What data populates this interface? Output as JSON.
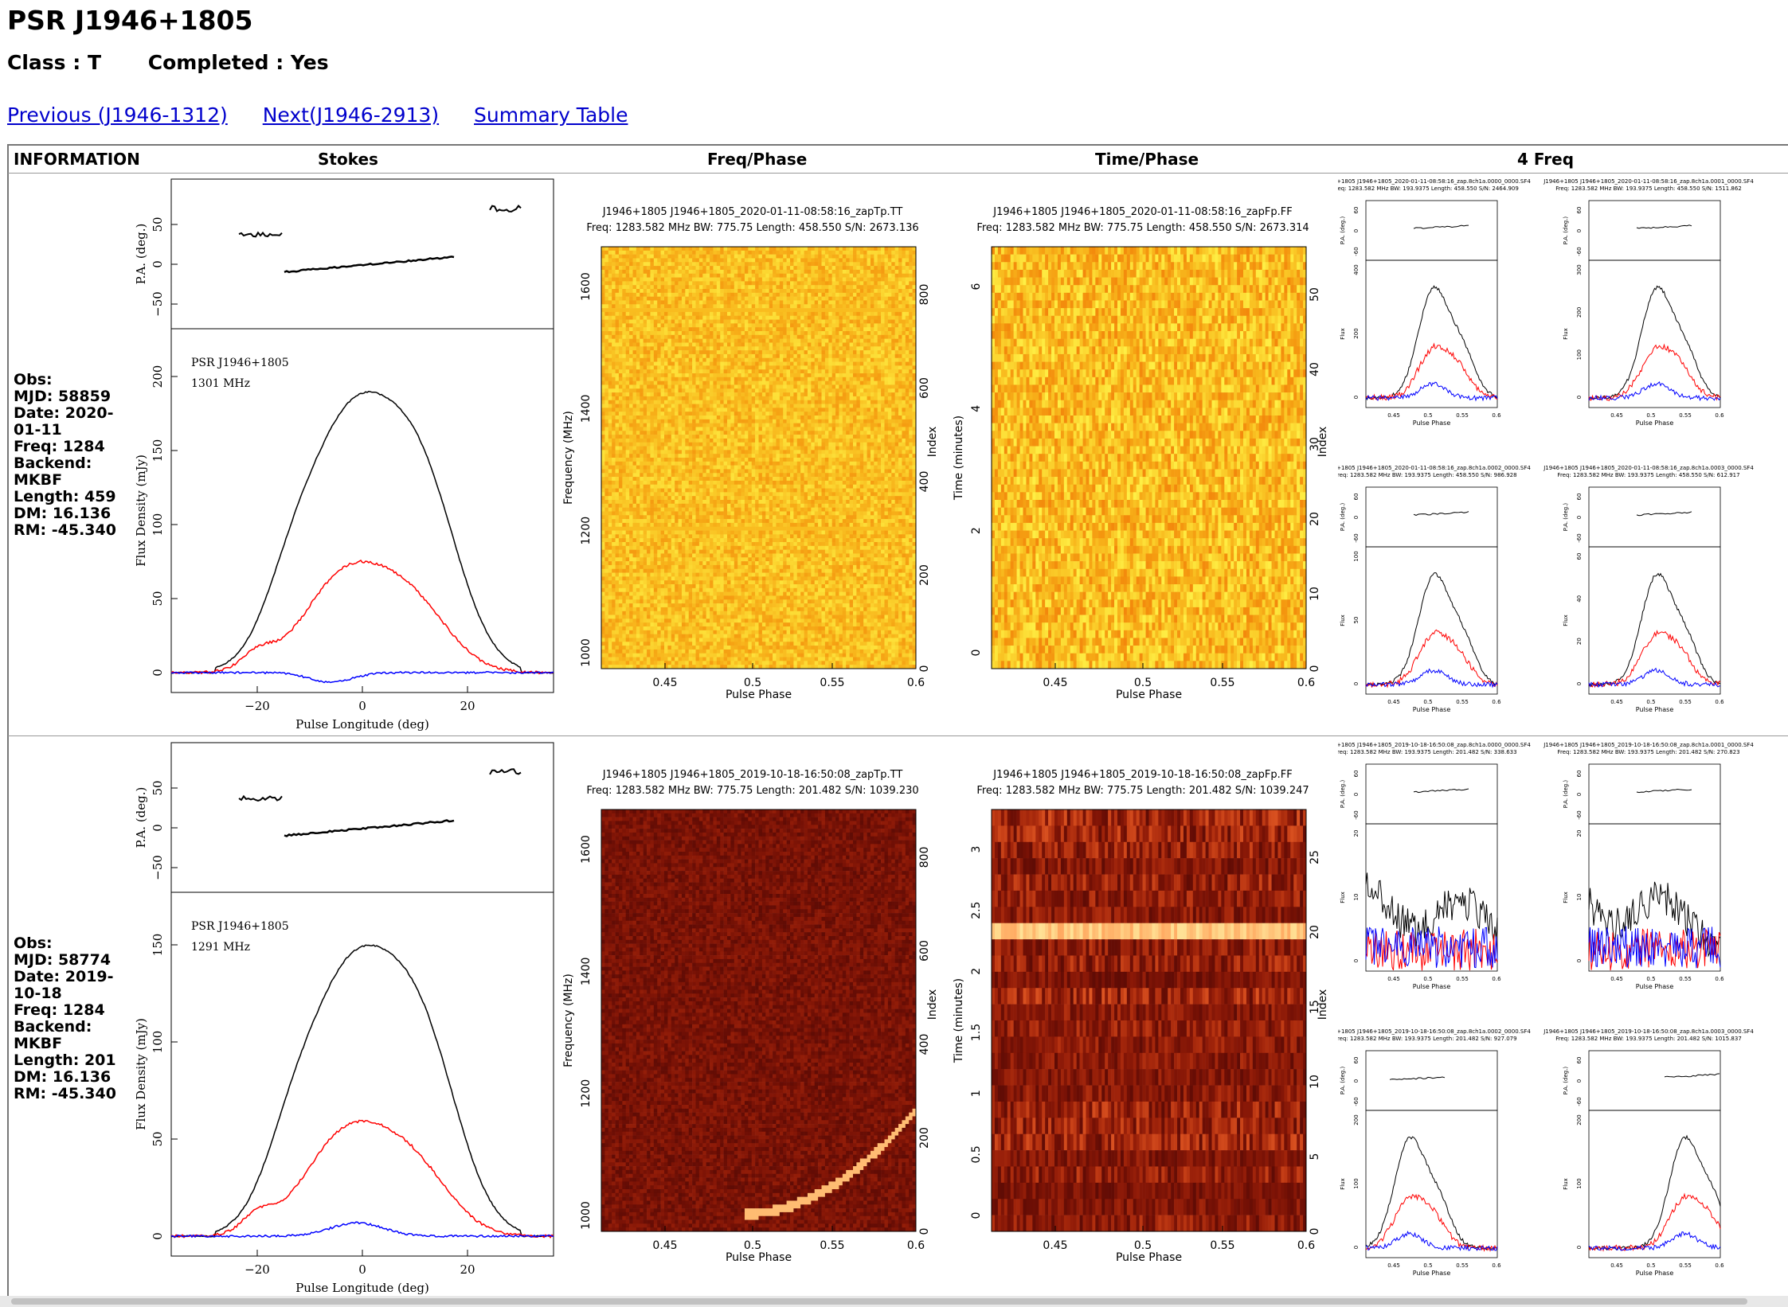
{
  "title": "PSR J1946+1805",
  "class_label": "Class : T",
  "completed_label": "Completed : Yes",
  "nav": {
    "previous": "Previous (J1946-1312)",
    "next": "Next(J1946-2913)",
    "summary": "Summary Table"
  },
  "headers": {
    "info": "INFORMATION",
    "stokes": "Stokes",
    "freq_phase": "Freq/Phase",
    "time_phase": "Time/Phase",
    "four_freq": "4 Freq"
  },
  "rows": [
    {
      "info": {
        "obs": "Obs:",
        "mjd": "MJD: 58859",
        "date": "Date: 2020-01-11",
        "freq": "Freq: 1284",
        "backend": "Backend: MKBF",
        "length": "Length: 459",
        "dm": "DM: 16.136",
        "rm": "RM: -45.340"
      },
      "stokes": {
        "psr": "PSR J1946+1805",
        "mhz": "1301 MHz",
        "pa_label": "P.A. (deg.)",
        "flux_label": "Flux Density (mJy)",
        "x_label": "Pulse Longitude (deg)",
        "pa_ticks": [
          "50",
          "0",
          "−50"
        ],
        "flux_ticks": [
          "200",
          "150",
          "100",
          "50",
          "0"
        ],
        "x_ticks": [
          "−20",
          "0",
          "20"
        ]
      },
      "freq_phase": {
        "title": "J1946+1805  J1946+1805_2020-01-11-08:58:16_zapTp.TT",
        "subtitle": "Freq: 1283.582 MHz BW: 775.75 Length: 458.550 S/N: 2673.136",
        "y_label": "Frequency (MHz)",
        "y2_label": "Index",
        "x_label": "Pulse Phase",
        "y_ticks": [
          "1600",
          "1400",
          "1200",
          "1000"
        ],
        "y2_ticks": [
          "800",
          "600",
          "400",
          "200",
          "0"
        ],
        "x_ticks": [
          "0.45",
          "0.5",
          "0.55",
          "0.6"
        ]
      },
      "time_phase": {
        "title": "J1946+1805  J1946+1805_2020-01-11-08:58:16_zapFp.FF",
        "subtitle": "Freq: 1283.582 MHz BW: 775.75 Length: 458.550 S/N: 2673.314",
        "y_label": "Time (minutes)",
        "y2_label": "Index",
        "x_label": "Pulse Phase",
        "y_ticks": [
          "6",
          "4",
          "2",
          "0"
        ],
        "y2_ticks": [
          "50",
          "40",
          "30",
          "20",
          "10",
          "0"
        ],
        "x_ticks": [
          "0.45",
          "0.5",
          "0.55",
          "0.6"
        ]
      },
      "four_freq": [
        {
          "title": "J1946+1805 J1946+1805_2020-01-11-08:58:16_zap.8ch1a.0000_0000.SF4",
          "sub": "Freq: 1283.582 MHz BW: 193.9375 Length: 458.550 S/N: 2464.909",
          "pa_ticks": [
            "60",
            "0",
            "-60"
          ],
          "flux_ticks": [
            "400",
            "200",
            "0"
          ]
        },
        {
          "title": "J1946+1805 J1946+1805_2020-01-11-08:58:16_zap.8ch1a.0001_0000.SF4",
          "sub": "Freq: 1283.582 MHz BW: 193.9375 Length: 458.550 S/N: 1511.862",
          "pa_ticks": [
            "60",
            "0",
            "-60"
          ],
          "flux_ticks": [
            "300",
            "200",
            "100",
            "0"
          ]
        },
        {
          "title": "J1946+1805 J1946+1805_2020-01-11-08:58:16_zap.8ch1a.0002_0000.SF4",
          "sub": "Freq: 1283.582 MHz BW: 193.9375 Length: 458.550 S/N: 986.928",
          "pa_ticks": [
            "60",
            "0",
            "-60"
          ],
          "flux_ticks": [
            "100",
            "50",
            "0"
          ]
        },
        {
          "title": "J1946+1805 J1946+1805_2020-01-11-08:58:16_zap.8ch1a.0003_0000.SF4",
          "sub": "Freq: 1283.582 MHz BW: 193.9375 Length: 458.550 S/N: 612.917",
          "pa_ticks": [
            "60",
            "0",
            "-60"
          ],
          "flux_ticks": [
            "60",
            "40",
            "20",
            "0"
          ]
        }
      ]
    },
    {
      "info": {
        "obs": "Obs:",
        "mjd": "MJD: 58774",
        "date": "Date: 2019-10-18",
        "freq": "Freq: 1284",
        "backend": "Backend: MKBF",
        "length": "Length: 201",
        "dm": "DM: 16.136",
        "rm": "RM: -45.340"
      },
      "stokes": {
        "psr": "PSR J1946+1805",
        "mhz": "1291 MHz",
        "pa_label": "P.A. (deg.)",
        "flux_label": "Flux Density (mJy)",
        "x_label": "Pulse Longitude (deg)",
        "pa_ticks": [
          "50",
          "0",
          "−50"
        ],
        "flux_ticks": [
          "150",
          "100",
          "50",
          "0"
        ],
        "x_ticks": [
          "−20",
          "0",
          "20"
        ]
      },
      "freq_phase": {
        "title": "J1946+1805  J1946+1805_2019-10-18-16:50:08_zapTp.TT",
        "subtitle": "Freq: 1283.582 MHz BW: 775.75 Length: 201.482 S/N: 1039.230",
        "y_label": "Frequency (MHz)",
        "y2_label": "Index",
        "x_label": "Pulse Phase",
        "y_ticks": [
          "1600",
          "1400",
          "1200",
          "1000"
        ],
        "y2_ticks": [
          "800",
          "600",
          "400",
          "200",
          "0"
        ],
        "x_ticks": [
          "0.45",
          "0.5",
          "0.55",
          "0.6"
        ]
      },
      "time_phase": {
        "title": "J1946+1805  J1946+1805_2019-10-18-16:50:08_zapFp.FF",
        "subtitle": "Freq: 1283.582 MHz BW: 775.75 Length: 201.482 S/N: 1039.247",
        "y_label": "Time (minutes)",
        "y2_label": "Index",
        "x_label": "Pulse Phase",
        "y_ticks": [
          "3",
          "2.5",
          "2",
          "1.5",
          "1",
          "0.5",
          "0"
        ],
        "y2_ticks": [
          "25",
          "20",
          "15",
          "10",
          "5",
          "0"
        ],
        "x_ticks": [
          "0.45",
          "0.5",
          "0.55",
          "0.6"
        ]
      },
      "four_freq": [
        {
          "title": "J1946+1805 J1946+1805_2019-10-18-16:50:08_zap.8ch1a.0000_0000.SF4",
          "sub": "Freq: 1283.582 MHz BW: 193.9375 Length: 201.482 S/N: 338.633",
          "pa_ticks": [
            "60",
            "0",
            "-60"
          ],
          "flux_ticks": [
            "20",
            "10",
            "0"
          ]
        },
        {
          "title": "J1946+1805 J1946+1805_2019-10-18-16:50:08_zap.8ch1a.0001_0000.SF4",
          "sub": "Freq: 1283.582 MHz BW: 193.9375 Length: 201.482 S/N: 270.823",
          "pa_ticks": [
            "60",
            "0",
            "-60"
          ],
          "flux_ticks": [
            "20",
            "10",
            "0"
          ]
        },
        {
          "title": "J1946+1805 J1946+1805_2019-10-18-16:50:08_zap.8ch1a.0002_0000.SF4",
          "sub": "Freq: 1283.582 MHz BW: 193.9375 Length: 201.482 S/N: 927.079",
          "pa_ticks": [
            "60",
            "0",
            "-60"
          ],
          "flux_ticks": [
            "200",
            "100",
            "0"
          ]
        },
        {
          "title": "J1946+1805 J1946+1805_2019-10-18-16:50:08_zap.8ch1a.0003_0000.SF4",
          "sub": "Freq: 1283.582 MHz BW: 193.9375 Length: 201.482 S/N: 1015.837",
          "pa_ticks": [
            "60",
            "0",
            "-60"
          ],
          "flux_ticks": [
            "200",
            "100",
            "0"
          ]
        }
      ],
      "four_freq_x_label": "Pulse Phase",
      "four_freq_x_ticks": [
        "0.45",
        "0.5",
        "0.55",
        "0.6"
      ]
    }
  ],
  "small_labels": {
    "pa": "P.A. (deg.)",
    "flux": "Flux",
    "phase": "Pulse Phase",
    "x_ticks": [
      "0.45",
      "0.5",
      "0.55",
      "0.6"
    ]
  },
  "colors": {
    "link": "#0000cc",
    "total_intensity": "#000000",
    "linear": "#ff0000",
    "circular": "#0000ff",
    "row1_heat_base": "#f3c033",
    "row2_heat_base": "#6b1300"
  }
}
